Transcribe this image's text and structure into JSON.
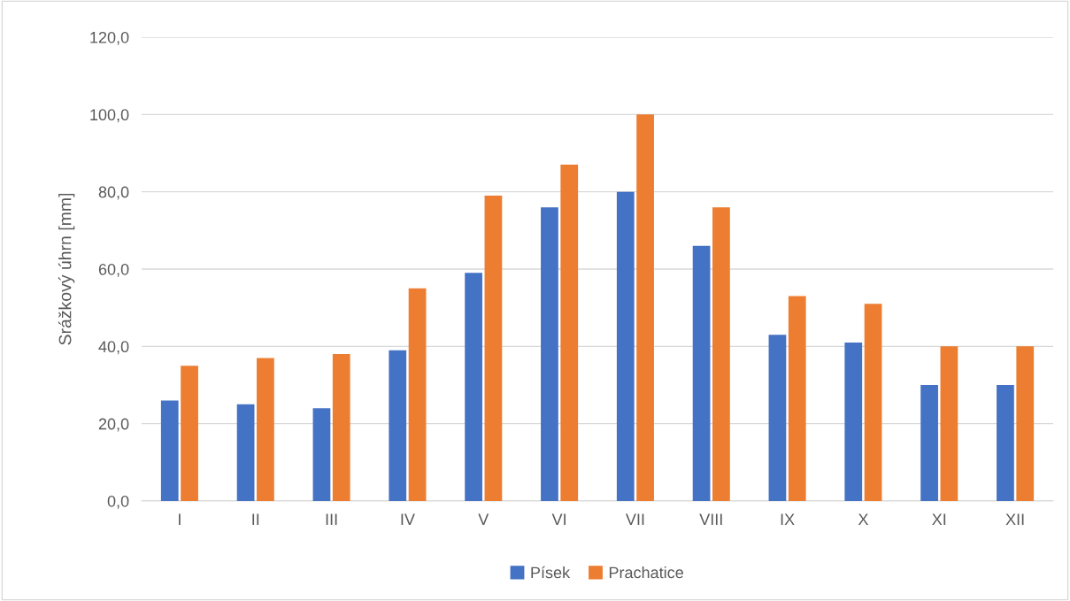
{
  "chart_data": {
    "type": "bar",
    "ylabel": "Srážkový úhrn [mm]",
    "categories": [
      "I",
      "II",
      "III",
      "IV",
      "V",
      "VI",
      "VII",
      "VIII",
      "IX",
      "X",
      "XI",
      "XII"
    ],
    "series": [
      {
        "name": "Písek",
        "color": "#4472c4",
        "values": [
          26,
          25,
          24,
          39,
          59,
          76,
          80,
          66,
          43,
          41,
          30,
          30
        ]
      },
      {
        "name": "Prachatice",
        "color": "#ed7d31",
        "values": [
          35,
          37,
          38,
          55,
          79,
          87,
          100,
          76,
          53,
          51,
          40,
          40
        ]
      }
    ],
    "ylim": [
      0,
      120
    ],
    "yticks": [
      {
        "value": 0,
        "label": "0,0"
      },
      {
        "value": 20,
        "label": "20,0"
      },
      {
        "value": 40,
        "label": "40,0"
      },
      {
        "value": 60,
        "label": "60,0"
      },
      {
        "value": 80,
        "label": "80,0"
      },
      {
        "value": 100,
        "label": "100,0"
      },
      {
        "value": 120,
        "label": "120,0"
      }
    ],
    "grid": "y",
    "legend": "bottom"
  }
}
